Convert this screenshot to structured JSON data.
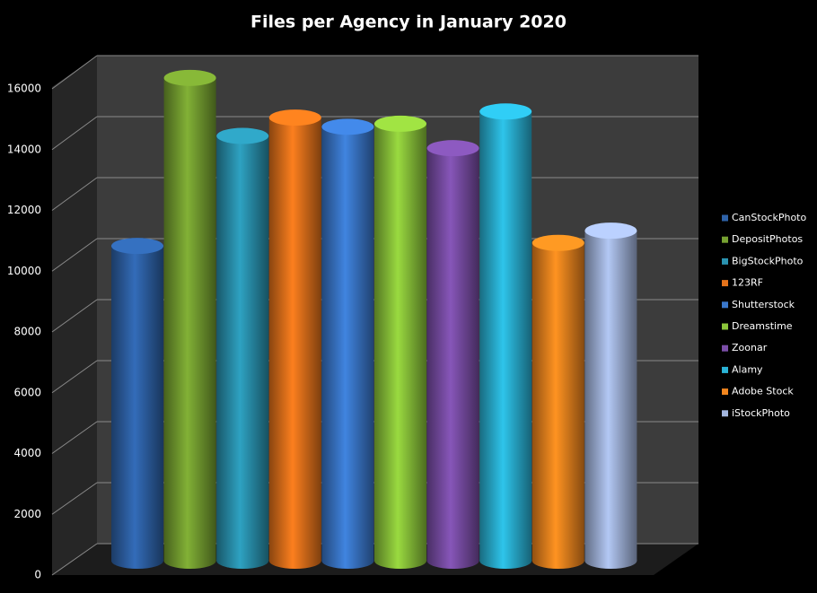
{
  "chart_data": {
    "type": "bar",
    "title": "Files per Agency in January 2020",
    "categories": [
      "CanStockPhoto",
      "DepositPhotos",
      "BigStockPhoto",
      "123RF",
      "Shutterstock",
      "Dreamstime",
      "Zoonar",
      "Alamy",
      "Adobe Stock",
      "iStockPhoto"
    ],
    "values": [
      10300,
      15800,
      13900,
      14500,
      14200,
      14300,
      13500,
      14700,
      10400,
      10800
    ],
    "colors": [
      "#2e62a8",
      "#76a131",
      "#2a93b0",
      "#e5731b",
      "#3a78cc",
      "#8cc63a",
      "#7b4ea8",
      "#2ab3d6",
      "#f2861e",
      "#a3b6de"
    ],
    "ylim": [
      0,
      16000
    ],
    "yticks": [
      0,
      2000,
      4000,
      6000,
      8000,
      10000,
      12000,
      14000,
      16000
    ],
    "grid": true,
    "legend": "right"
  }
}
